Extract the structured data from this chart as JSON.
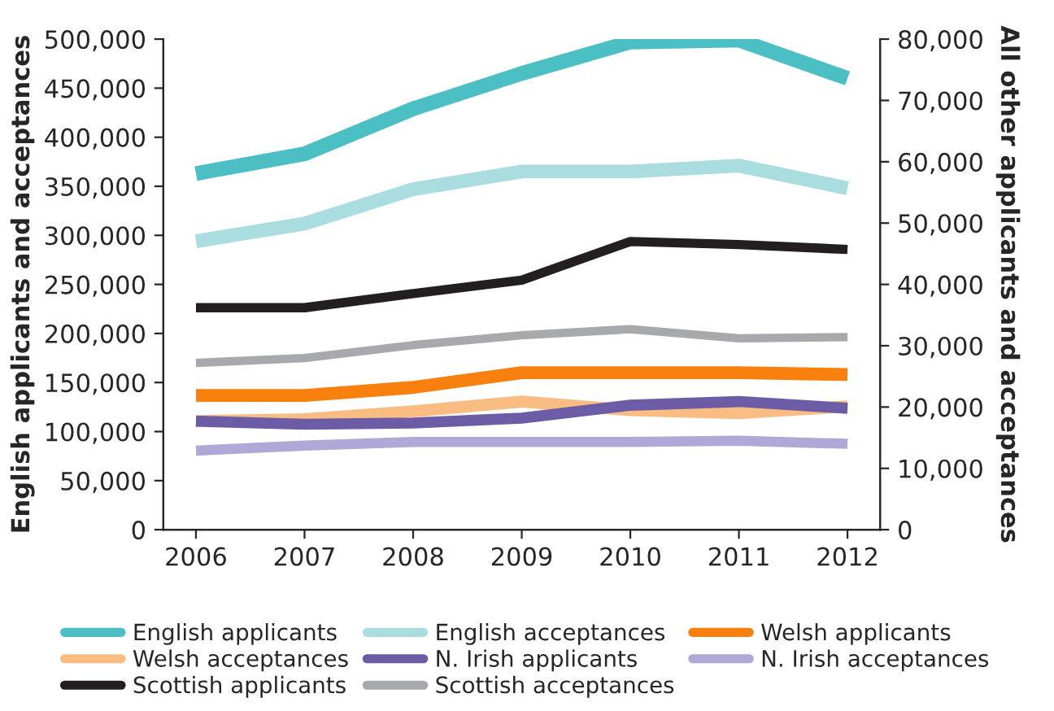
{
  "chart_data": {
    "type": "line",
    "ylabel": "English applicants and acceptances",
    "y2label": "All other applicants and acceptances",
    "categories": [
      "2006",
      "2007",
      "2008",
      "2009",
      "2010",
      "2011",
      "2012"
    ],
    "ylim": [
      0,
      500000
    ],
    "yticks": [
      {
        "value": 0,
        "label": "0"
      },
      {
        "value": 50000,
        "label": "50,000"
      },
      {
        "value": 100000,
        "label": "100,000"
      },
      {
        "value": 150000,
        "label": "150,000"
      },
      {
        "value": 200000,
        "label": "200,000"
      },
      {
        "value": 250000,
        "label": "250,000"
      },
      {
        "value": 300000,
        "label": "300,000"
      },
      {
        "value": 350000,
        "label": "350,000"
      },
      {
        "value": 400000,
        "label": "400,000"
      },
      {
        "value": 450000,
        "label": "450,000"
      },
      {
        "value": 500000,
        "label": "500,000"
      }
    ],
    "y2lim": [
      0,
      80000
    ],
    "y2ticks": [
      {
        "value": 0,
        "label": "0"
      },
      {
        "value": 10000,
        "label": "10,000"
      },
      {
        "value": 20000,
        "label": "20,000"
      },
      {
        "value": 30000,
        "label": "30,000"
      },
      {
        "value": 40000,
        "label": "40,000"
      },
      {
        "value": 50000,
        "label": "50,000"
      },
      {
        "value": 60000,
        "label": "60,000"
      },
      {
        "value": 70000,
        "label": "70,000"
      },
      {
        "value": 80000,
        "label": "80,000"
      }
    ],
    "grid": false,
    "legend": "bottom",
    "marker": "none",
    "line_style": "solid",
    "series": [
      {
        "name": "English applicants",
        "color": "#4bbfc4",
        "values": [
          363000,
          383000,
          429000,
          465000,
          497000,
          499000,
          460000
        ]
      },
      {
        "name": "English acceptances",
        "color": "#a9dde0",
        "values": [
          294000,
          312000,
          347000,
          365000,
          365000,
          371000,
          348000
        ]
      },
      {
        "name": "Welsh applicants",
        "color": "#f7800f",
        "axis": "y2",
        "values": [
          21900,
          21900,
          23200,
          25600,
          25600,
          25600,
          25300
        ]
      },
      {
        "name": "Welsh acceptances",
        "color": "#f9bd84",
        "axis": "y2",
        "values": [
          17700,
          18000,
          19300,
          20900,
          19500,
          19000,
          20100
        ]
      },
      {
        "name": "N. Irish applicants",
        "color": "#6b5ca5",
        "axis": "y2",
        "values": [
          17700,
          17200,
          17400,
          18200,
          20300,
          20900,
          19800
        ]
      },
      {
        "name": "N. Irish acceptances",
        "color": "#b0a8d6",
        "axis": "y2",
        "values": [
          12900,
          13700,
          14300,
          14300,
          14300,
          14500,
          14000
        ]
      },
      {
        "name": "Scottish applicants",
        "color": "#231f20",
        "axis": "y2",
        "values": [
          36200,
          36200,
          38500,
          40700,
          47000,
          46500,
          45700
        ]
      },
      {
        "name": "Scottish acceptances",
        "color": "#a7a9ac",
        "axis": "y2",
        "values": [
          27200,
          28000,
          30100,
          31700,
          32700,
          31200,
          31400
        ]
      }
    ]
  }
}
